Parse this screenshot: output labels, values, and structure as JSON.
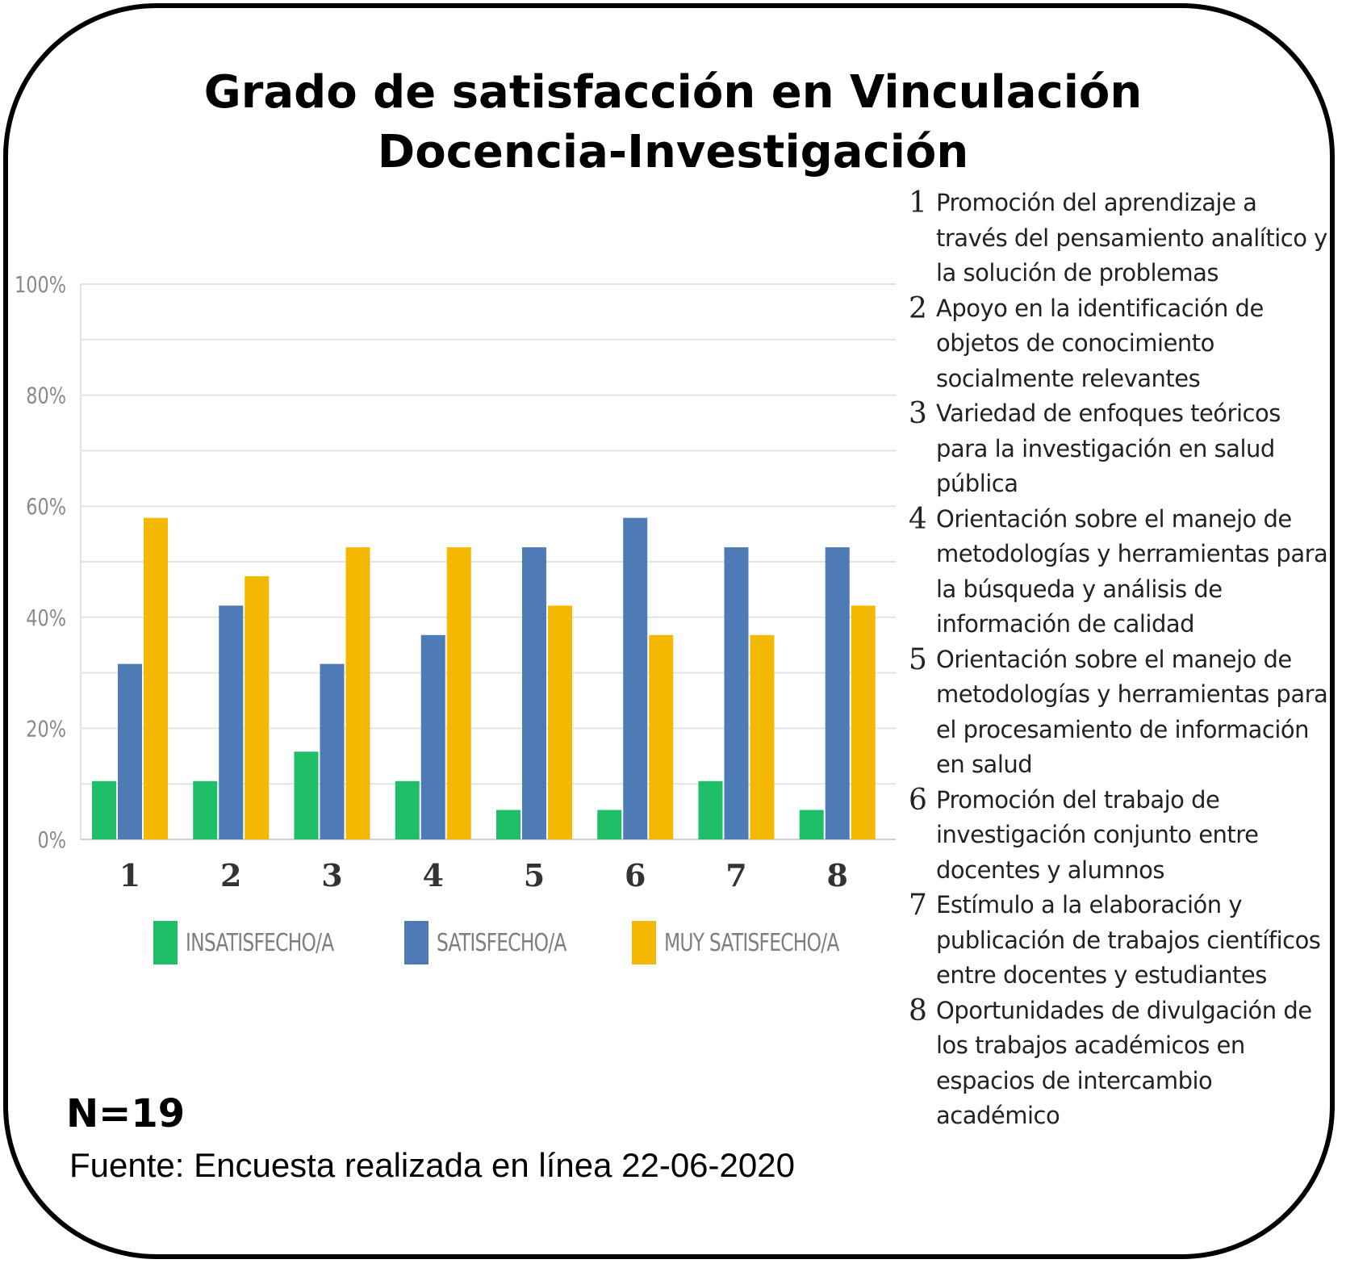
{
  "title_lines": [
    "Grado de satisfacción en Vinculación",
    "Docencia-Investigación"
  ],
  "n_label": "N=19",
  "source": "Fuente: Encuesta realizada en línea 22-06-2020",
  "colors": {
    "insatisfecho": "#1fbf6a",
    "satisfecho": "#4e7ab5",
    "muy_satisfecho": "#f5b800",
    "grid": "#e3e3e3",
    "tick_text": "#8a8a8a",
    "category_text": "#333333"
  },
  "descriptions": [
    {
      "num": "1",
      "text": "Promoción del aprendizaje a través del pensamiento analítico y la solución de problemas"
    },
    {
      "num": "2",
      "text": "Apoyo en la identificación de objetos de conocimiento socialmente relevantes"
    },
    {
      "num": "3",
      "text": "Variedad de enfoques teóricos para la investigación en salud pública"
    },
    {
      "num": "4",
      "text": "Orientación sobre el manejo de metodologías y herramientas para la búsqueda y análisis de información de calidad"
    },
    {
      "num": "5",
      "text": "Orientación sobre el manejo de metodologías y herramientas para el procesamiento de información en salud"
    },
    {
      "num": "6",
      "text": "Promoción del trabajo de investigación conjunto entre docentes y alumnos"
    },
    {
      "num": "7",
      "text": "Estímulo a la elaboración y publicación de trabajos científicos entre docentes y estudiantes"
    },
    {
      "num": "8",
      "text": "Oportunidades de divulgación de los trabajos académicos en espacios de intercambio académico"
    }
  ],
  "chart_data": {
    "type": "bar",
    "categories": [
      "1",
      "2",
      "3",
      "4",
      "5",
      "6",
      "7",
      "8"
    ],
    "series": [
      {
        "name": "INSATISFECHO/A",
        "values": [
          10.5,
          10.5,
          15.8,
          10.5,
          5.3,
          5.3,
          10.5,
          5.3
        ]
      },
      {
        "name": "SATISFECHO/A",
        "values": [
          31.6,
          42.1,
          31.6,
          36.8,
          52.6,
          57.9,
          52.6,
          52.6
        ]
      },
      {
        "name": "MUY SATISFECHO/A",
        "values": [
          57.9,
          47.4,
          52.6,
          52.6,
          42.1,
          36.8,
          36.8,
          42.1
        ]
      }
    ],
    "y_ticks": [
      "0%",
      "20%",
      "40%",
      "60%",
      "80%",
      "100%"
    ],
    "ylim": [
      0,
      100
    ],
    "grid": true,
    "legend_position": "bottom"
  }
}
